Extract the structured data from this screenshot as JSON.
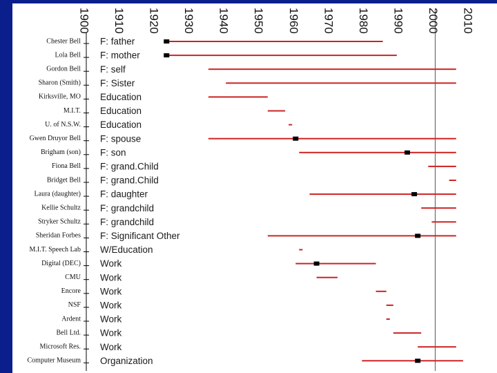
{
  "chart_data": {
    "type": "timeline",
    "title": "",
    "xlabel": "",
    "ylabel": "",
    "xlim": [
      1900,
      2010
    ],
    "x_ticks": [
      1900,
      1910,
      1920,
      1930,
      1940,
      1950,
      1960,
      1970,
      1980,
      1990,
      2000,
      2010
    ],
    "reference_line": 2000,
    "colors": {
      "bar": "#cc2222",
      "marker": "#000000",
      "axis": "#000000",
      "text": "#111111"
    },
    "rows": [
      {
        "name": "Chester Bell",
        "category": "F: father",
        "start": 1923,
        "end": 1985,
        "marker": 1923
      },
      {
        "name": "Lola Bell",
        "category": "F: mother",
        "start": 1923,
        "end": 1989,
        "marker": 1923
      },
      {
        "name": "Gordon Bell",
        "category": "F: self",
        "start": 1935,
        "end": 2006,
        "marker": null
      },
      {
        "name": "Sharon (Smith)",
        "category": "F: Sister",
        "start": 1940,
        "end": 2006,
        "marker": null
      },
      {
        "name": "Kirksville, MO",
        "category": "Education",
        "start": 1935,
        "end": 1952,
        "marker": null
      },
      {
        "name": "M.I.T.",
        "category": "Education",
        "start": 1952,
        "end": 1957,
        "marker": null
      },
      {
        "name": "U. of N.S.W.",
        "category": "Education",
        "start": 1958,
        "end": 1959,
        "marker": null
      },
      {
        "name": "Gwen Druyor Bell",
        "category": "F: spouse",
        "start": 1935,
        "end": 2006,
        "marker": 1960
      },
      {
        "name": "Brigham (son)",
        "category": "F: son",
        "start": 1961,
        "end": 2006,
        "marker": 1992
      },
      {
        "name": "Fiona Bell",
        "category": "F: grand.Child",
        "start": 1998,
        "end": 2006,
        "marker": null
      },
      {
        "name": "Bridget Bell",
        "category": "F: grand.Child",
        "start": 2004,
        "end": 2006,
        "marker": null
      },
      {
        "name": "Laura (daughter)",
        "category": "F: daughter",
        "start": 1964,
        "end": 2006,
        "marker": 1994
      },
      {
        "name": "Kellie Schultz",
        "category": "F: grandchild",
        "start": 1996,
        "end": 2006,
        "marker": null
      },
      {
        "name": "Stryker Schultz",
        "category": "F: grandchild",
        "start": 1999,
        "end": 2006,
        "marker": null
      },
      {
        "name": "Sheridan Forbes",
        "category": "F: Significant Other",
        "start": 1952,
        "end": 2006,
        "marker": 1995
      },
      {
        "name": "M.I.T. Speech Lab",
        "category": "W/Education",
        "start": 1961,
        "end": 1962,
        "marker": null
      },
      {
        "name": "Digital (DEC)",
        "category": "Work",
        "start": 1960,
        "end": 1983,
        "marker": 1966
      },
      {
        "name": "CMU",
        "category": "Work",
        "start": 1966,
        "end": 1972,
        "marker": null
      },
      {
        "name": "Encore",
        "category": "Work",
        "start": 1983,
        "end": 1986,
        "marker": null
      },
      {
        "name": "NSF",
        "category": "Work",
        "start": 1986,
        "end": 1988,
        "marker": null
      },
      {
        "name": "Ardent",
        "category": "Work",
        "start": 1986,
        "end": 1987,
        "marker": null
      },
      {
        "name": "Bell Ltd.",
        "category": "Work",
        "start": 1988,
        "end": 1996,
        "marker": null
      },
      {
        "name": "Microsoft Res.",
        "category": "Work",
        "start": 1995,
        "end": 2006,
        "marker": null
      },
      {
        "name": "Computer Museum",
        "category": "Organization",
        "start": 1979,
        "end": 2008,
        "marker": 1995
      }
    ]
  }
}
